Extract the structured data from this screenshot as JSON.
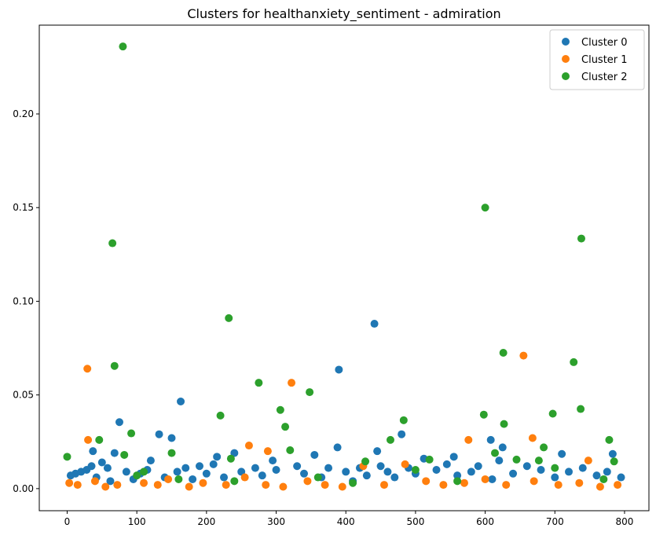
{
  "chart_data": {
    "type": "scatter",
    "title": "Clusters for healthanxiety_sentiment - admiration",
    "xlim": [
      -40,
      835
    ],
    "ylim": [
      -0.0118,
      0.2474
    ],
    "xticks": [
      0,
      100,
      200,
      300,
      400,
      500,
      600,
      700,
      800
    ],
    "yticks": [
      {
        "value": 0,
        "label": "0.00"
      },
      {
        "value": 0.05,
        "label": "0.05"
      },
      {
        "value": 0.1,
        "label": "0.10"
      },
      {
        "value": 0.15,
        "label": "0.15"
      },
      {
        "value": 0.2,
        "label": "0.20"
      }
    ],
    "legend": "upper right",
    "series": [
      {
        "name": "Cluster 0",
        "color": "#1f77b4",
        "x": [
          75,
          163,
          441,
          390,
          132,
          150,
          37,
          68,
          480,
          388,
          445,
          608,
          625,
          555,
          710,
          783,
          5,
          12,
          20,
          28,
          35,
          42,
          50,
          58,
          62,
          85,
          95,
          105,
          115,
          120,
          140,
          158,
          170,
          180,
          190,
          200,
          210,
          215,
          225,
          240,
          250,
          270,
          280,
          295,
          300,
          330,
          340,
          355,
          365,
          375,
          400,
          410,
          420,
          430,
          450,
          460,
          470,
          490,
          500,
          512,
          530,
          545,
          560,
          580,
          590,
          610,
          620,
          640,
          660,
          680,
          700,
          720,
          740,
          760,
          775,
          795
        ],
        "values": [
          0.0355,
          0.0465,
          0.088,
          0.0635,
          0.029,
          0.027,
          0.02,
          0.019,
          0.029,
          0.022,
          0.02,
          0.026,
          0.022,
          0.017,
          0.0185,
          0.0185,
          0.007,
          0.008,
          0.009,
          0.01,
          0.012,
          0.006,
          0.014,
          0.011,
          0.004,
          0.009,
          0.005,
          0.008,
          0.01,
          0.015,
          0.006,
          0.009,
          0.011,
          0.005,
          0.012,
          0.008,
          0.013,
          0.017,
          0.006,
          0.019,
          0.009,
          0.011,
          0.007,
          0.015,
          0.01,
          0.012,
          0.008,
          0.018,
          0.006,
          0.011,
          0.009,
          0.004,
          0.011,
          0.007,
          0.012,
          0.009,
          0.006,
          0.011,
          0.008,
          0.016,
          0.01,
          0.013,
          0.007,
          0.009,
          0.012,
          0.005,
          0.015,
          0.008,
          0.012,
          0.01,
          0.006,
          0.009,
          0.011,
          0.007,
          0.009,
          0.006
        ]
      },
      {
        "name": "Cluster 1",
        "color": "#ff7f0e",
        "x": [
          29,
          322,
          655,
          30,
          576,
          261,
          288,
          668,
          748,
          3,
          15,
          40,
          55,
          72,
          110,
          130,
          145,
          175,
          195,
          228,
          255,
          285,
          310,
          345,
          370,
          395,
          425,
          455,
          485,
          515,
          540,
          570,
          600,
          630,
          670,
          705,
          735,
          765,
          790
        ],
        "values": [
          0.064,
          0.0565,
          0.071,
          0.026,
          0.026,
          0.023,
          0.02,
          0.027,
          0.015,
          0.003,
          0.002,
          0.004,
          0.001,
          0.002,
          0.003,
          0.002,
          0.005,
          0.001,
          0.003,
          0.002,
          0.006,
          0.002,
          0.001,
          0.004,
          0.002,
          0.001,
          0.012,
          0.002,
          0.013,
          0.004,
          0.002,
          0.003,
          0.005,
          0.002,
          0.004,
          0.002,
          0.003,
          0.001,
          0.002
        ]
      },
      {
        "name": "Cluster 2",
        "color": "#2ca02c",
        "x": [
          0,
          80,
          65,
          68,
          600,
          738,
          232,
          626,
          727,
          275,
          348,
          598,
          220,
          306,
          313,
          697,
          737,
          627,
          92,
          483,
          46,
          464,
          778,
          320,
          150,
          82,
          614,
          684,
          235,
          428,
          520,
          645,
          677,
          785,
          100,
          110,
          160,
          240,
          360,
          410,
          500,
          560,
          700,
          770
        ],
        "values": [
          0.017,
          0.236,
          0.131,
          0.0655,
          0.15,
          0.1335,
          0.091,
          0.0725,
          0.0675,
          0.0565,
          0.0515,
          0.0395,
          0.039,
          0.042,
          0.033,
          0.04,
          0.0425,
          0.0345,
          0.0295,
          0.0365,
          0.026,
          0.026,
          0.026,
          0.0205,
          0.019,
          0.018,
          0.019,
          0.022,
          0.016,
          0.0145,
          0.0155,
          0.0155,
          0.015,
          0.0145,
          0.007,
          0.009,
          0.005,
          0.004,
          0.006,
          0.003,
          0.01,
          0.004,
          0.011,
          0.005
        ]
      }
    ]
  }
}
